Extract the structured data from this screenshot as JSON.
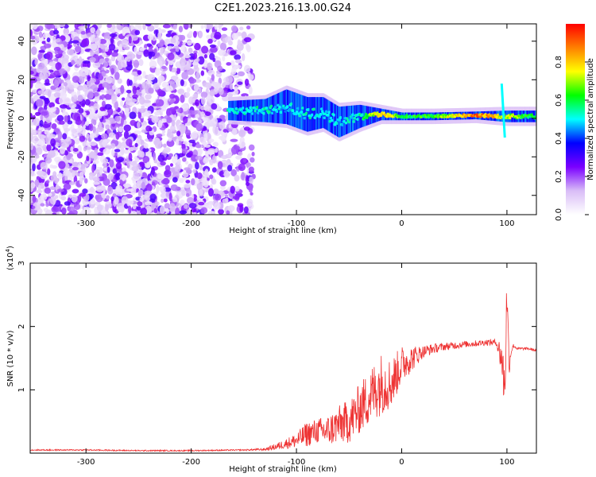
{
  "title": "C2E1.2023.216.13.00.G24",
  "chart_data": [
    {
      "type": "heatmap",
      "xlabel": "Height of straight line (km)",
      "ylabel": "Frequency (Hz)",
      "xlim": [
        -353,
        128
      ],
      "ylim": [
        -50,
        49
      ],
      "xticks": [
        -300,
        -200,
        -100,
        0,
        100
      ],
      "yticks": [
        -40,
        -20,
        0,
        20,
        40
      ],
      "colorbar": {
        "label": "Normalized spectral amplitude",
        "range": [
          0,
          1
        ],
        "ticks": [
          0.0,
          0.2,
          0.4,
          0.6,
          0.8
        ],
        "colormap": "rainbow",
        "stops": [
          "#ffffff",
          "#d9bdf7",
          "#7a00ff",
          "#0000ff",
          "#00ffff",
          "#00ff00",
          "#ffff00",
          "#ff8000",
          "#ff0000"
        ]
      },
      "noise_region": {
        "x_range": [
          -353,
          -150
        ],
        "freq_range": [
          -50,
          49
        ],
        "amplitude_range": [
          0.05,
          0.3
        ]
      },
      "signal_track": [
        {
          "x": -165,
          "freq": 4,
          "width": 5,
          "amplitude": 0.55
        },
        {
          "x": -130,
          "freq": 4,
          "width": 6,
          "amplitude": 0.55
        },
        {
          "x": -110,
          "freq": 6,
          "width": 9,
          "amplitude": 0.5
        },
        {
          "x": -90,
          "freq": 2,
          "width": 9,
          "amplitude": 0.55
        },
        {
          "x": -75,
          "freq": 3,
          "width": 8,
          "amplitude": 0.55
        },
        {
          "x": -60,
          "freq": -2,
          "width": 8,
          "amplitude": 0.5
        },
        {
          "x": -40,
          "freq": 1,
          "width": 6,
          "amplitude": 0.55
        },
        {
          "x": -20,
          "freq": 2,
          "width": 3,
          "amplitude": 0.85
        },
        {
          "x": 0,
          "freq": 1,
          "width": 2,
          "amplitude": 0.65
        },
        {
          "x": 30,
          "freq": 1,
          "width": 2,
          "amplitude": 0.65
        },
        {
          "x": 70,
          "freq": 1.5,
          "width": 2,
          "amplitude": 0.95
        },
        {
          "x": 100,
          "freq": 1,
          "width": 3,
          "amplitude": 0.75
        },
        {
          "x": 128,
          "freq": 1,
          "width": 3,
          "amplitude": 0.6
        }
      ],
      "spikes": [
        {
          "x": 95,
          "freq_range": [
            -10,
            18
          ],
          "amplitude": 0.5
        }
      ]
    },
    {
      "type": "line",
      "xlabel": "Height of straight line (km)",
      "ylabel": "SNR (10 * v/v)",
      "y_multiplier": "(x10",
      "y_multiplier_exp": "4",
      "y_multiplier_close": ")",
      "xlim": [
        -353,
        128
      ],
      "ylim": [
        0,
        3
      ],
      "xticks": [
        -300,
        -200,
        -100,
        0,
        100
      ],
      "yticks": [
        1,
        2,
        3
      ],
      "color": "#ee3333",
      "series": [
        {
          "x": [
            -353,
            -300,
            -250,
            -200,
            -150,
            -130,
            -120,
            -110,
            -100,
            -90,
            -80,
            -70,
            -60,
            -50,
            -40,
            -30,
            -20,
            -10,
            0,
            10,
            20,
            30,
            40,
            50,
            60,
            70,
            80,
            90,
            95,
            98,
            100,
            102,
            104,
            106,
            110,
            120,
            128
          ],
          "y": [
            0.05,
            0.05,
            0.04,
            0.04,
            0.05,
            0.06,
            0.1,
            0.15,
            0.2,
            0.3,
            0.35,
            0.35,
            0.45,
            0.5,
            0.7,
            0.9,
            1.1,
            1.1,
            1.4,
            1.5,
            1.6,
            1.65,
            1.68,
            1.7,
            1.72,
            1.73,
            1.75,
            1.75,
            1.5,
            1.0,
            2.6,
            1.4,
            1.6,
            1.7,
            1.65,
            1.65,
            1.62
          ],
          "spread": [
            0.01,
            0.01,
            0.01,
            0.01,
            0.01,
            0.02,
            0.05,
            0.08,
            0.12,
            0.2,
            0.2,
            0.25,
            0.3,
            0.35,
            0.4,
            0.45,
            0.5,
            0.4,
            0.3,
            0.2,
            0.1,
            0.08,
            0.06,
            0.06,
            0.05,
            0.05,
            0.05,
            0.05,
            0.3,
            0.5,
            0.4,
            0.2,
            0.05,
            0.03,
            0.02,
            0.02,
            0.02
          ]
        }
      ]
    }
  ]
}
